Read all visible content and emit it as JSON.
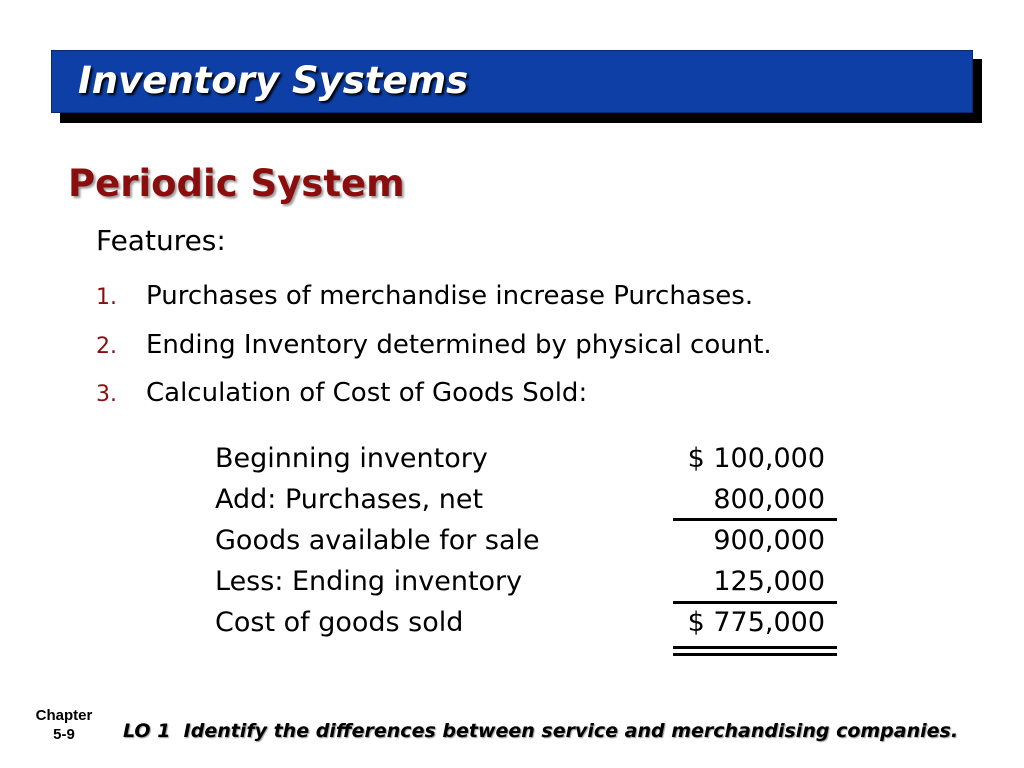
{
  "header": {
    "title": "Inventory Systems",
    "banner_color": "#0d3fa6"
  },
  "subtitle": "Periodic System",
  "features_label": "Features:",
  "items": [
    {
      "num": "1.",
      "text": "Purchases of merchandise increase Purchases."
    },
    {
      "num": "2.",
      "text": "Ending Inventory determined by physical count."
    },
    {
      "num": "3.",
      "text": "Calculation of Cost of Goods Sold:"
    }
  ],
  "calc": [
    {
      "label": "Beginning inventory",
      "amount": "$ 100,000"
    },
    {
      "label": "Add: Purchases, net",
      "amount": "800,000"
    },
    {
      "label": "Goods available for sale",
      "amount": "900,000"
    },
    {
      "label": "Less: Ending inventory",
      "amount": "125,000"
    },
    {
      "label": "Cost of goods sold",
      "amount": "$ 775,000"
    }
  ],
  "footer": {
    "chapter": "Chapter",
    "page": "5-9",
    "lo": "LO 1  Identify the differences between service and merchandising companies."
  }
}
